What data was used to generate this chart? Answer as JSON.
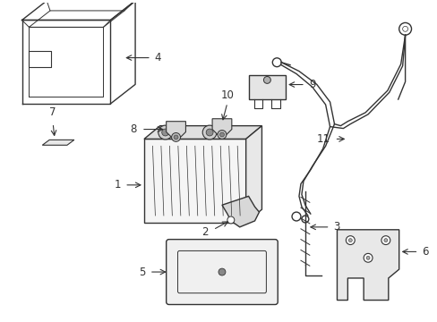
{
  "background_color": "#ffffff",
  "line_color": "#333333",
  "line_width": 1.0,
  "label_fontsize": 8.5,
  "figsize": [
    4.89,
    3.6
  ],
  "dpi": 100
}
